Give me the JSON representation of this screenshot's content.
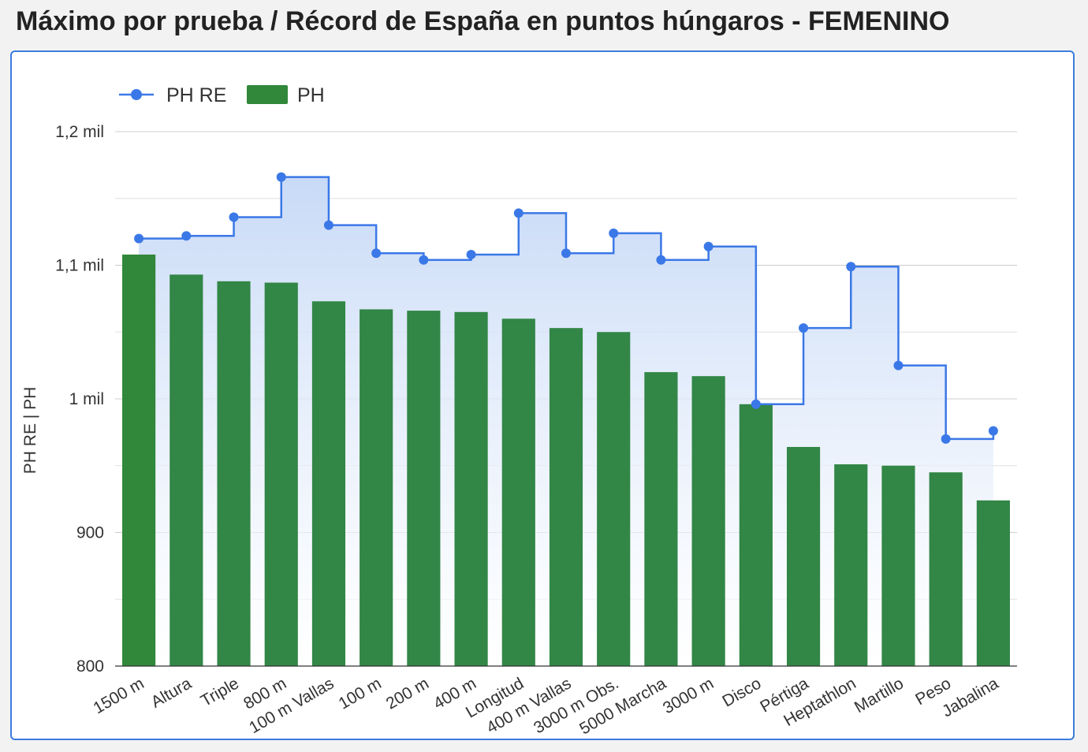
{
  "title": "Máximo por prueba / Récord de España en puntos húngaros - FEMENINO",
  "colors": {
    "line": "#3b78e7",
    "bar": "#31873a",
    "bar_overlay": "#2e7d5a",
    "grid": "#cccccc",
    "axis": "#333333"
  },
  "legend": {
    "items": [
      "PH RE",
      "PH"
    ]
  },
  "chart_data": {
    "type": "bar",
    "categories": [
      "1500 m",
      "Altura",
      "Triple",
      "800 m",
      "100 m Vallas",
      "100 m",
      "200 m",
      "400 m",
      "Longitud",
      "400 m Vallas",
      "3000 m Obs.",
      "5000 Marcha",
      "3000 m",
      "Disco",
      "Pértiga",
      "Heptathlon",
      "Martillo",
      "Peso",
      "Jabalina"
    ],
    "series": [
      {
        "name": "PH RE",
        "render": "stepped-area-line",
        "values": [
          1120,
          1122,
          1136,
          1166,
          1130,
          1109,
          1104,
          1108,
          1139,
          1109,
          1124,
          1104,
          1114,
          996,
          1053,
          1099,
          1025,
          970,
          976
        ]
      },
      {
        "name": "PH",
        "render": "bar",
        "values": [
          1108,
          1093,
          1088,
          1087,
          1073,
          1067,
          1066,
          1065,
          1060,
          1053,
          1050,
          1020,
          1017,
          996,
          964,
          951,
          950,
          945,
          924
        ]
      }
    ],
    "ylabel": "PH RE | PH",
    "ylim": [
      800,
      1200
    ],
    "yticks": [
      {
        "value": 800,
        "label": "800"
      },
      {
        "value": 900,
        "label": "900"
      },
      {
        "value": 1000,
        "label": "1 mil"
      },
      {
        "value": 1100,
        "label": "1,1 mil"
      },
      {
        "value": 1200,
        "label": "1,2 mil"
      }
    ],
    "grid": true,
    "legend_position": "top-left"
  }
}
